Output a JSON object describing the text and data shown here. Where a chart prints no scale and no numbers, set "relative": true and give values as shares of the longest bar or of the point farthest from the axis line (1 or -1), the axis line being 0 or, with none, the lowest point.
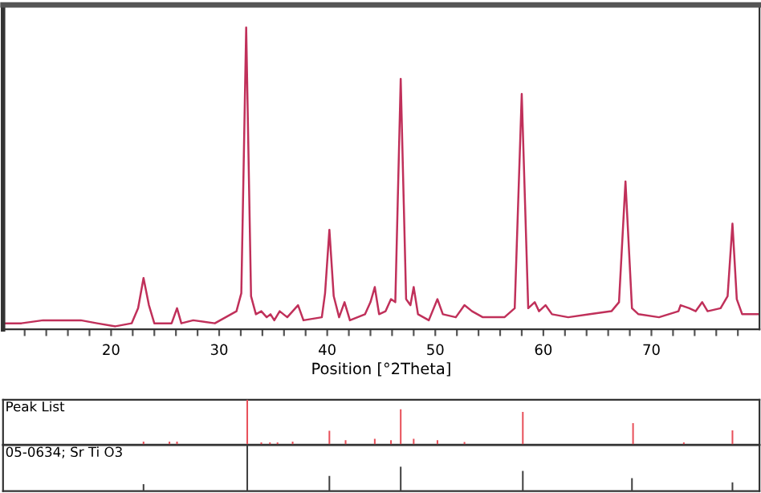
{
  "chart_data": [
    {
      "type": "line",
      "xlabel": "Position [°2Theta]",
      "relative": true,
      "xlim": [
        10,
        80
      ],
      "tick_labels": "x",
      "xticks": [
        {
          "value": 12,
          "label": null
        },
        {
          "value": 14,
          "label": null
        },
        {
          "value": 16,
          "label": null
        },
        {
          "value": 18,
          "label": null
        },
        20,
        {
          "value": 22,
          "label": null
        },
        {
          "value": 24,
          "label": null
        },
        {
          "value": 26,
          "label": null
        },
        {
          "value": 28,
          "label": null
        },
        30,
        {
          "value": 32,
          "label": null
        },
        {
          "value": 34,
          "label": null
        },
        {
          "value": 36,
          "label": null
        },
        {
          "value": 38,
          "label": null
        },
        40,
        {
          "value": 42,
          "label": null
        },
        {
          "value": 44,
          "label": null
        },
        {
          "value": 46,
          "label": null
        },
        {
          "value": 48,
          "label": null
        },
        50,
        {
          "value": 52,
          "label": null
        },
        {
          "value": 54,
          "label": null
        },
        {
          "value": 56,
          "label": null
        },
        {
          "value": 58,
          "label": null
        },
        60,
        {
          "value": 62,
          "label": null
        },
        {
          "value": 64,
          "label": null
        },
        {
          "value": 66,
          "label": null
        },
        {
          "value": 68,
          "label": null
        },
        70,
        {
          "value": 72,
          "label": null
        },
        {
          "value": 74,
          "label": null
        },
        {
          "value": 76,
          "label": null
        },
        {
          "value": 78,
          "label": null
        }
      ],
      "series": [
        {
          "color": "#c0305a",
          "x": [
            10.0,
            11.7,
            13.7,
            15.2,
            17.2,
            18.7,
            20.4,
            21.9,
            22.5,
            23.0,
            23.5,
            24.0,
            25.6,
            26.1,
            26.5,
            27.6,
            29.6,
            31.1,
            31.6,
            32.05,
            32.5,
            32.95,
            33.4,
            33.9,
            34.4,
            34.75,
            35.1,
            35.6,
            36.3,
            37.3,
            37.8,
            39.5,
            39.8,
            40.2,
            40.6,
            41.1,
            41.6,
            42.1,
            43.5,
            44.0,
            44.4,
            44.8,
            45.4,
            45.9,
            46.3,
            46.8,
            47.3,
            47.7,
            48.0,
            48.4,
            49.4,
            50.2,
            50.7,
            51.9,
            52.7,
            53.4,
            54.4,
            56.4,
            57.35,
            58.0,
            58.6,
            59.2,
            59.6,
            60.2,
            60.8,
            62.3,
            64.3,
            66.3,
            67.0,
            67.6,
            68.2,
            68.8,
            70.7,
            72.5,
            72.7,
            73.5,
            74.1,
            74.7,
            75.2,
            76.4,
            77.05,
            77.5,
            77.9,
            78.4,
            80.0
          ],
          "values": [
            0.02,
            0.02,
            0.03,
            0.03,
            0.03,
            0.02,
            0.01,
            0.02,
            0.07,
            0.17,
            0.08,
            0.02,
            0.02,
            0.07,
            0.02,
            0.03,
            0.02,
            0.05,
            0.06,
            0.12,
            1,
            0.11,
            0.05,
            0.06,
            0.04,
            0.05,
            0.03,
            0.06,
            0.04,
            0.08,
            0.03,
            0.04,
            0.12,
            0.33,
            0.11,
            0.04,
            0.09,
            0.03,
            0.05,
            0.09,
            0.14,
            0.05,
            0.06,
            0.1,
            0.09,
            0.83,
            0.1,
            0.08,
            0.14,
            0.05,
            0.03,
            0.1,
            0.05,
            0.04,
            0.08,
            0.06,
            0.04,
            0.04,
            0.07,
            0.78,
            0.07,
            0.09,
            0.06,
            0.08,
            0.05,
            0.04,
            0.05,
            0.06,
            0.09,
            0.49,
            0.07,
            0.05,
            0.04,
            0.06,
            0.08,
            0.07,
            0.06,
            0.09,
            0.06,
            0.07,
            0.11,
            0.35,
            0.1,
            0.05,
            0.05
          ]
        }
      ]
    },
    {
      "type": "bar",
      "title": "Peak List",
      "relative": true,
      "xlim": [
        10,
        80
      ],
      "tick_labels": false,
      "series": [
        {
          "color": "#e8505a",
          "x": [
            23.0,
            25.4,
            26.1,
            32.6,
            33.9,
            34.7,
            35.4,
            36.8,
            40.2,
            41.7,
            44.4,
            45.9,
            46.8,
            48.0,
            50.2,
            52.7,
            58.1,
            68.3,
            73.0,
            77.5
          ],
          "values": [
            0.07,
            0.07,
            0.07,
            1,
            0.05,
            0.05,
            0.05,
            0.07,
            0.31,
            0.1,
            0.13,
            0.1,
            0.79,
            0.13,
            0.1,
            0.06,
            0.73,
            0.48,
            0.05,
            0.32
          ]
        }
      ]
    },
    {
      "type": "bar",
      "title": "05-0634; Sr Ti O3",
      "relative": true,
      "xlim": [
        10,
        80
      ],
      "tick_labels": false,
      "series": [
        {
          "color": "#404040",
          "x": [
            23.0,
            32.6,
            40.2,
            46.8,
            58.1,
            68.2,
            77.5
          ],
          "values": [
            0.15,
            1,
            0.33,
            0.53,
            0.44,
            0.28,
            0.19
          ]
        }
      ]
    }
  ]
}
